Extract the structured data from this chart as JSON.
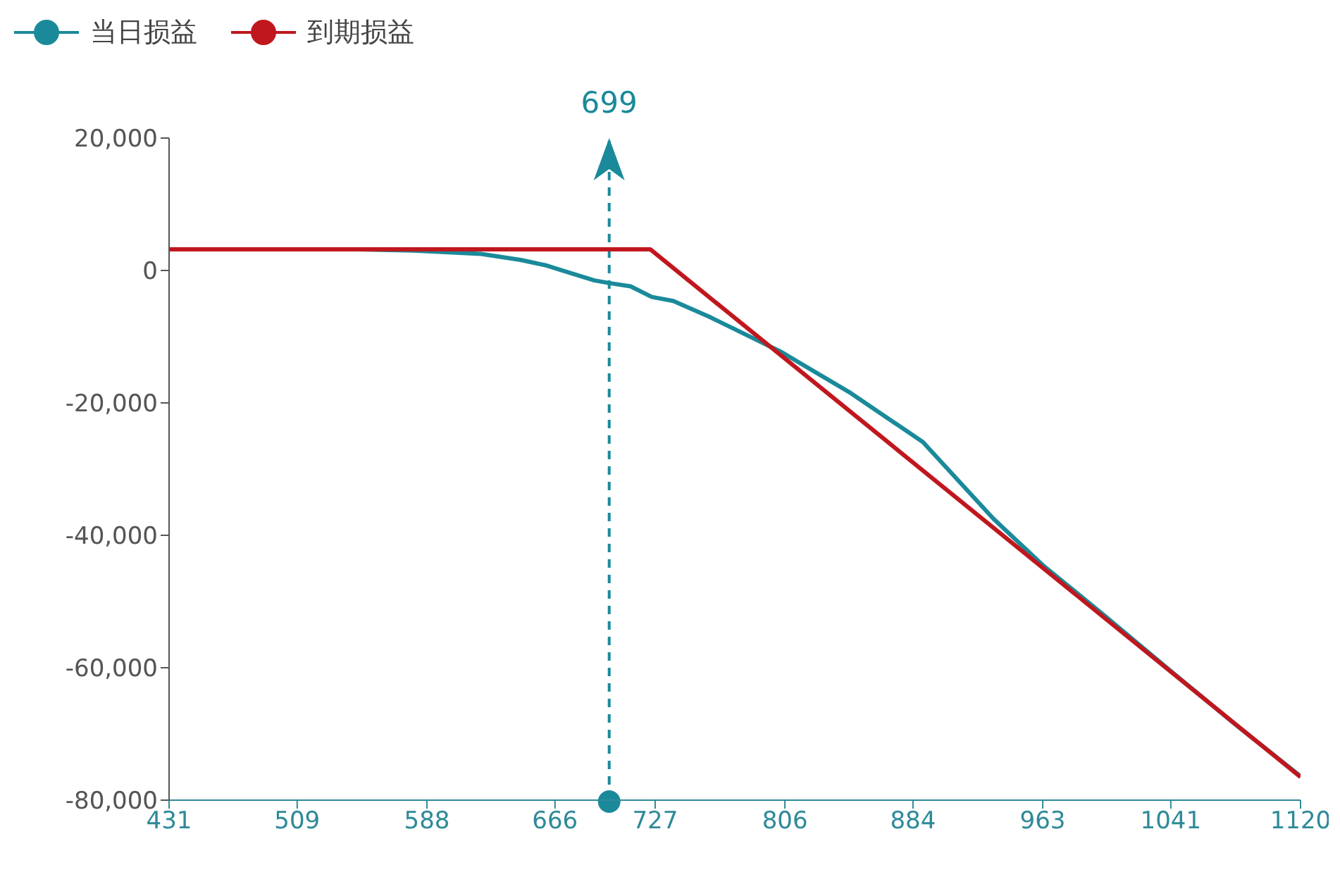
{
  "chart_data": {
    "type": "line",
    "legend": "top left",
    "marker": "none",
    "xlim": [
      431,
      1120
    ],
    "xticks": [
      431,
      509,
      588,
      666,
      727,
      806,
      884,
      963,
      1041,
      1120
    ],
    "ylim": [
      -80000,
      20000
    ],
    "yticks": [
      {
        "value": -80000,
        "label": "-80,000"
      },
      {
        "value": -60000,
        "label": "-60,000"
      },
      {
        "value": -40000,
        "label": "-40,000"
      },
      {
        "value": -20000,
        "label": "-20,000"
      },
      0,
      {
        "value": 20000,
        "label": "20,000"
      }
    ],
    "ref_lines": [
      {
        "axis": "x",
        "value": 699,
        "label": "699",
        "color": "#1a8a9a",
        "line_style": "dashed"
      }
    ],
    "series": [
      {
        "name": "当日损益",
        "color": "#1a8a9a",
        "x": [
          431,
          500,
          544,
          580,
          621,
          645,
          660,
          673,
          690,
          699,
          712,
          725,
          738,
          760,
          803,
          846,
          890,
          933,
          963,
          1000,
          1041,
          1080,
          1120
        ],
        "values": [
          3200,
          3200,
          3200,
          3000,
          2500,
          1600,
          800,
          -200,
          -1500,
          -1900,
          -2400,
          -4000,
          -4600,
          -7000,
          -12200,
          -18500,
          -25900,
          -37500,
          -44500,
          -52000,
          -60500,
          -68500,
          -76400
        ]
      },
      {
        "name": "到期损益",
        "color": "#c0171e",
        "x": [
          431,
          724,
          1120
        ],
        "values": [
          3200,
          3200,
          -76500
        ]
      }
    ]
  }
}
